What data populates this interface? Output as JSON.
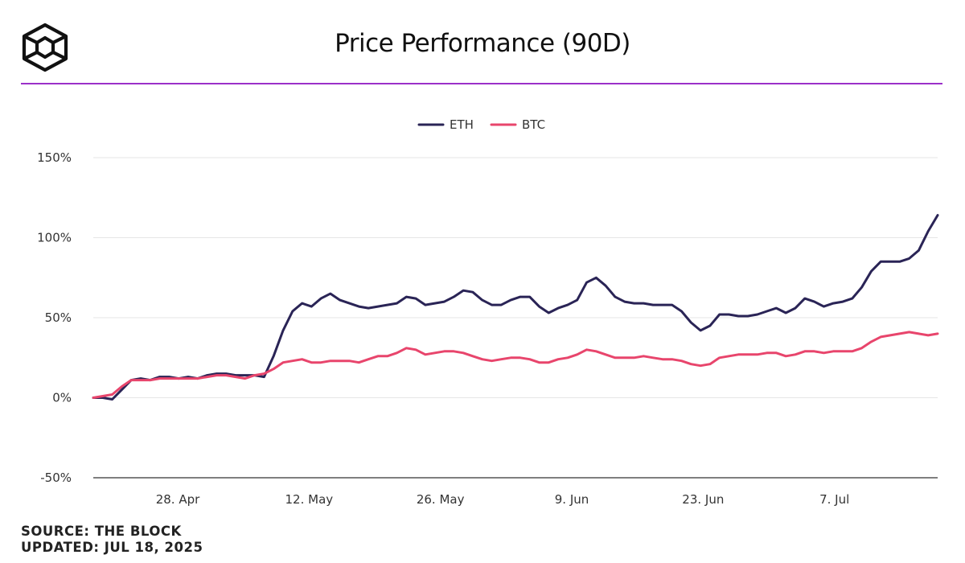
{
  "header": {
    "title": "Price Performance (90D)",
    "logo_icon": "the-block-cube-logo"
  },
  "colors": {
    "accent": "#9b30c9",
    "eth": "#2a2456",
    "btc": "#e8456c"
  },
  "footer": {
    "source": "SOURCE: THE BLOCK",
    "updated": "UPDATED: JUL 18, 2025"
  },
  "chart_data": {
    "type": "line",
    "title": "Price Performance (90D)",
    "xlabel": "",
    "ylabel": "",
    "ylim": [
      -50,
      150
    ],
    "y_ticks": [
      "150%",
      "100%",
      "50%",
      "0%",
      "-50%"
    ],
    "y_tick_values": [
      150,
      100,
      50,
      0,
      -50
    ],
    "x_ticks": [
      "28. Apr",
      "12. May",
      "26. May",
      "9. Jun",
      "23. Jun",
      "7. Jul"
    ],
    "x_tick_dates": [
      "2025-04-28",
      "2025-05-12",
      "2025-05-26",
      "2025-06-09",
      "2025-06-23",
      "2025-07-07"
    ],
    "x_start": "2025-04-19",
    "x_end": "2025-07-18",
    "grid": true,
    "legend_position": "top-center",
    "series": [
      {
        "name": "ETH",
        "color": "#2a2456",
        "values": [
          0,
          0,
          -1,
          5,
          11,
          12,
          11,
          13,
          13,
          12,
          13,
          12,
          14,
          15,
          15,
          14,
          14,
          14,
          13,
          26,
          42,
          54,
          59,
          57,
          62,
          65,
          61,
          59,
          57,
          56,
          57,
          58,
          59,
          63,
          62,
          58,
          59,
          60,
          63,
          67,
          66,
          61,
          58,
          58,
          61,
          63,
          63,
          57,
          53,
          56,
          58,
          61,
          72,
          75,
          70,
          63,
          60,
          59,
          59,
          58,
          58,
          58,
          54,
          47,
          42,
          45,
          52,
          52,
          51,
          51,
          52,
          54,
          56,
          53,
          56,
          62,
          60,
          57,
          59,
          60,
          62,
          69,
          79,
          85,
          85,
          85,
          87,
          92,
          104,
          114
        ]
      },
      {
        "name": "BTC",
        "color": "#e8456c",
        "values": [
          0,
          1,
          2,
          7,
          11,
          11,
          11,
          12,
          12,
          12,
          12,
          12,
          13,
          14,
          14,
          13,
          12,
          14,
          15,
          18,
          22,
          23,
          24,
          22,
          22,
          23,
          23,
          23,
          22,
          24,
          26,
          26,
          28,
          31,
          30,
          27,
          28,
          29,
          29,
          28,
          26,
          24,
          23,
          24,
          25,
          25,
          24,
          22,
          22,
          24,
          25,
          27,
          30,
          29,
          27,
          25,
          25,
          25,
          26,
          25,
          24,
          24,
          23,
          21,
          20,
          21,
          25,
          26,
          27,
          27,
          27,
          28,
          28,
          26,
          27,
          29,
          29,
          28,
          29,
          29,
          29,
          31,
          35,
          38,
          39,
          40,
          41,
          40,
          39,
          40
        ]
      }
    ]
  }
}
